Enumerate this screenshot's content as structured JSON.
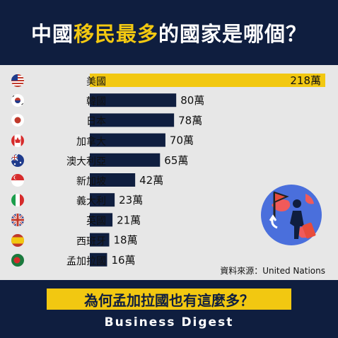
{
  "title": {
    "part1": "中國",
    "part2": "移民最多",
    "part3": "的國家是哪個？"
  },
  "chart_data": {
    "type": "bar",
    "orientation": "horizontal",
    "title": "中國移民最多的國家是哪個？",
    "categories": [
      "美國",
      "韓國",
      "日本",
      "加拿大",
      "澳大利亞",
      "新加坡",
      "義大利",
      "英國",
      "西班牙",
      "孟加拉國"
    ],
    "values": [
      218,
      80,
      78,
      70,
      65,
      42,
      23,
      21,
      18,
      16
    ],
    "value_labels": [
      "218萬",
      "80萬",
      "78萬",
      "70萬",
      "65萬",
      "42萬",
      "23萬",
      "21萬",
      "18萬",
      "16萬"
    ],
    "unit": "萬",
    "highlight_index": 0,
    "grid": false,
    "legend": "none"
  },
  "flags": [
    "us-flag-icon",
    "korea-flag-icon",
    "japan-flag-icon",
    "canada-flag-icon",
    "australia-flag-icon",
    "singapore-flag-icon",
    "italy-flag-icon",
    "uk-flag-icon",
    "spain-flag-icon",
    "bangladesh-flag-icon"
  ],
  "source": "資料來源：United Nations",
  "footer": {
    "question": "為何孟加拉國也有這麼多？",
    "brand": "Business Digest"
  },
  "colors": {
    "background": "#0f1e3f",
    "panel": "#e7e7e7",
    "accent": "#f2c811",
    "bar": "#0f1e3f",
    "highlight_bar": "#f2c811"
  }
}
